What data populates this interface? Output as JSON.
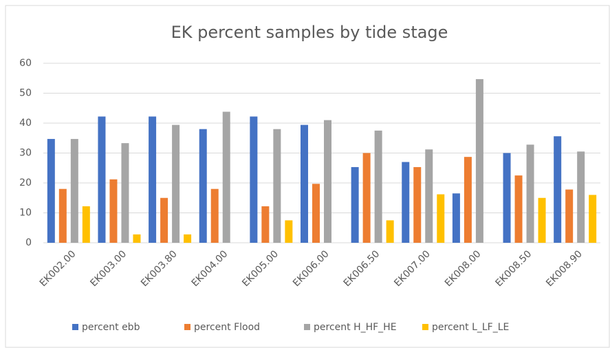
{
  "chart_data": {
    "type": "bar",
    "title": "EK percent samples by tide stage",
    "categories": [
      "EK002.00",
      "EK003.00",
      "EK003.80",
      "EK004.00",
      "EK005.00",
      "EK006.00",
      "EK006.50",
      "EK007.00",
      "EK008.00",
      "EK008.50",
      "EK008.90"
    ],
    "series": [
      {
        "name": "percent ebb",
        "color": "#4472c4",
        "values": [
          34.7,
          42.2,
          42.2,
          38,
          42.2,
          39.4,
          25.3,
          27,
          16.5,
          30,
          35.6
        ]
      },
      {
        "name": "percent Flood",
        "color": "#ed7d31",
        "values": [
          18,
          21.2,
          15,
          18,
          12.2,
          19.7,
          30,
          25.3,
          28.7,
          22.5,
          17.8
        ]
      },
      {
        "name": "percent H_HF_HE",
        "color": "#a5a5a5",
        "values": [
          34.7,
          33.3,
          39.4,
          43.8,
          38,
          41,
          37.5,
          31.2,
          54.7,
          32.8,
          30.5
        ]
      },
      {
        "name": "percent L_LF_LE",
        "color": "#ffc000",
        "values": [
          12.2,
          2.8,
          2.8,
          0,
          7.5,
          0,
          7.5,
          16.2,
          0,
          15,
          16
        ]
      }
    ],
    "ylim": [
      0,
      60
    ],
    "yticks": [
      0,
      10,
      20,
      30,
      40,
      50,
      60
    ],
    "grid": true,
    "legend": "bottom"
  }
}
